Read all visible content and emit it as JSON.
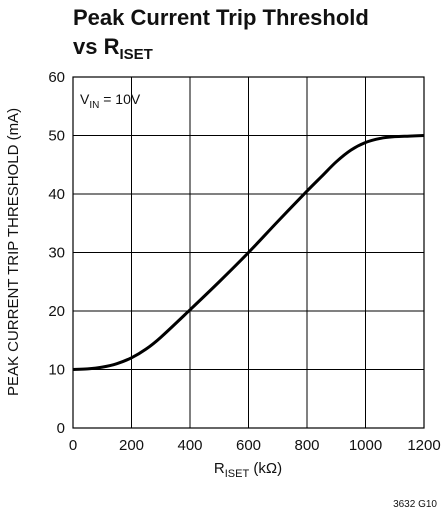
{
  "chart_data": {
    "type": "line",
    "title_main": "Peak Current Trip Threshold",
    "title_vs": "vs R",
    "title_sub": "ISET",
    "annotation_main": "V",
    "annotation_sub": "IN",
    "annotation_rest": " = 10V",
    "xlabel_main": "R",
    "xlabel_sub": "ISET",
    "xlabel_rest": " (kΩ)",
    "ylabel": "PEAK CURRENT TRIP THRESHOLD (mA)",
    "xlim": [
      0,
      1200
    ],
    "ylim": [
      0,
      60
    ],
    "xticks": [
      0,
      200,
      400,
      600,
      800,
      1000,
      1200
    ],
    "yticks": [
      0,
      10,
      20,
      30,
      40,
      50,
      60
    ],
    "grid": true,
    "figure_code": "3632 G10",
    "series": [
      {
        "x": [
          0,
          50,
          100,
          150,
          200,
          250,
          300,
          400,
          500,
          600,
          700,
          800,
          850,
          900,
          950,
          1000,
          1050,
          1100,
          1150,
          1200
        ],
        "y": [
          10,
          10.1,
          10.4,
          11.0,
          12.0,
          13.5,
          15.5,
          20.2,
          25.0,
          30.0,
          35.3,
          40.5,
          43.0,
          45.5,
          47.5,
          48.8,
          49.5,
          49.8,
          49.9,
          50.0
        ]
      }
    ]
  }
}
